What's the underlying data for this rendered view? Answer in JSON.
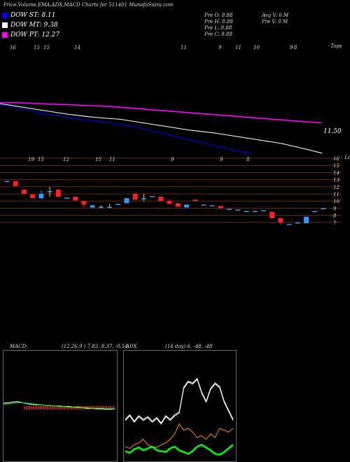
{
  "header": {
    "title": "Price,Volume,EMA,ADX,MACD Charts for 511401 MunafaSutra.com",
    "ohlc": {
      "open": "Pre  O: 8.88",
      "high": "Pre  H: 8.88",
      "low": "Pre  L: 8.88",
      "close": "Pre  C: 8.88",
      "avg_vol": "Avg V: 0  M",
      "pre_vol": "Pre  V: 0  M"
    }
  },
  "legend": [
    {
      "label": "DOW ST: 8.11",
      "color": "#0000ff"
    },
    {
      "label": "DOW MT: 9.38",
      "color": "#ffffff"
    },
    {
      "label": "DOW PT: 12.27",
      "color": "#ff00ff"
    }
  ],
  "ema_panel": {
    "top_label": "◦Tops",
    "last_price": "11.50",
    "date_labels": [
      "16",
      "15",
      "15",
      "14",
      "11",
      "9",
      "11",
      "10",
      "9",
      "8"
    ]
  },
  "price_panel": {
    "bottom_label": "◦ Lows",
    "date_labels": [
      "19",
      "15",
      "12",
      "15",
      "11",
      "9",
      "9",
      "8"
    ]
  },
  "macd": {
    "title": "MACD:",
    "params": "(12,26,9 ) 7.83, 8.37, -0.54"
  },
  "adx": {
    "title": "ADX",
    "params": "(14  day) 6, -48, -48"
  },
  "chart_data": [
    {
      "type": "line",
      "title": "EMA panel",
      "series": [
        {
          "name": "",
          "color": "#ff00ff",
          "values": [
            14.2,
            14.2,
            14.15,
            14.1,
            14.05,
            14.0,
            13.95,
            13.9,
            13.85,
            13.75,
            13.65,
            13.55,
            13.45,
            13.35,
            13.25,
            13.15,
            13.05,
            12.95,
            12.85,
            12.75,
            12.65,
            12.55,
            12.45,
            12.35,
            12.27
          ]
        },
        {
          "name": "",
          "color": "#ffffff",
          "values": [
            14.1,
            13.9,
            13.7,
            13.5,
            13.3,
            13.1,
            12.95,
            12.8,
            12.7,
            12.6,
            12.4,
            12.2,
            12.0,
            11.8,
            11.6,
            11.45,
            11.3,
            11.1,
            10.9,
            10.7,
            10.5,
            10.3,
            10.0,
            9.7,
            9.38
          ]
        },
        {
          "name": "",
          "color": "#0000ff",
          "values": [
            14.0,
            13.8,
            13.5,
            13.2,
            13.0,
            12.8,
            12.6,
            12.45,
            12.3,
            12.1,
            11.9,
            11.6,
            11.3,
            11.0,
            10.7,
            10.4,
            10.1,
            9.8,
            9.5,
            9.2,
            8.9,
            8.6,
            8.3,
            8.2,
            8.11
          ]
        }
      ]
    },
    {
      "type": "candlestick",
      "title": "Price panel",
      "y_ticks": [
        16,
        15,
        14,
        13,
        12,
        11,
        10,
        9,
        8,
        7
      ],
      "ylim": [
        6,
        16.5
      ],
      "candles": [
        {
          "o": 12.8,
          "c": 12.8,
          "h": 12.8,
          "l": 12.8
        },
        {
          "o": 12.8,
          "c": 12.1,
          "h": 12.8,
          "l": 12.1
        },
        {
          "o": 11.6,
          "c": 11.0,
          "h": 11.6,
          "l": 11.0
        },
        {
          "o": 10.9,
          "c": 10.4,
          "h": 11.0,
          "l": 10.4
        },
        {
          "o": 10.4,
          "c": 11.0,
          "h": 11.5,
          "l": 10.3
        },
        {
          "o": 11.4,
          "c": 11.4,
          "h": 12.0,
          "l": 10.6
        },
        {
          "o": 11.6,
          "c": 10.6,
          "h": 11.6,
          "l": 10.6
        },
        {
          "o": 10.5,
          "c": 10.5,
          "h": 10.5,
          "l": 10.5
        },
        {
          "o": 10.6,
          "c": 10.1,
          "h": 10.6,
          "l": 10.0
        },
        {
          "o": 10.0,
          "c": 9.5,
          "h": 10.0,
          "l": 9.1
        },
        {
          "o": 9.1,
          "c": 9.4,
          "h": 9.4,
          "l": 9.0
        },
        {
          "o": 9.2,
          "c": 9.2,
          "h": 9.4,
          "l": 9.0
        },
        {
          "o": 9.2,
          "c": 9.2,
          "h": 9.6,
          "l": 9.0
        },
        {
          "o": 9.6,
          "c": 9.6,
          "h": 9.6,
          "l": 9.6
        },
        {
          "o": 9.7,
          "c": 10.4,
          "h": 10.4,
          "l": 9.7
        },
        {
          "o": 11.0,
          "c": 10.2,
          "h": 11.1,
          "l": 10.2
        },
        {
          "o": 10.4,
          "c": 10.4,
          "h": 11.0,
          "l": 10.0
        },
        {
          "o": 10.7,
          "c": 10.7,
          "h": 10.7,
          "l": 10.7
        },
        {
          "o": 10.6,
          "c": 10.0,
          "h": 10.6,
          "l": 10.0
        },
        {
          "o": 10.0,
          "c": 9.6,
          "h": 10.2,
          "l": 9.6
        },
        {
          "o": 9.7,
          "c": 9.2,
          "h": 9.7,
          "l": 9.2
        },
        {
          "o": 9.1,
          "c": 9.5,
          "h": 9.5,
          "l": 9.1
        },
        {
          "o": 10.2,
          "c": 10.0,
          "h": 10.2,
          "l": 10.0
        },
        {
          "o": 9.5,
          "c": 9.5,
          "h": 9.5,
          "l": 9.5
        },
        {
          "o": 9.4,
          "c": 9.4,
          "h": 9.4,
          "l": 9.4
        },
        {
          "o": 9.3,
          "c": 9.0,
          "h": 9.3,
          "l": 9.0
        },
        {
          "o": 8.9,
          "c": 8.9,
          "h": 8.9,
          "l": 8.9
        },
        {
          "o": 8.8,
          "c": 8.8,
          "h": 8.8,
          "l": 8.8
        },
        {
          "o": 8.6,
          "c": 8.6,
          "h": 8.6,
          "l": 8.6
        },
        {
          "o": 8.6,
          "c": 8.6,
          "h": 8.6,
          "l": 8.6
        },
        {
          "o": 8.7,
          "c": 8.7,
          "h": 8.7,
          "l": 8.7
        },
        {
          "o": 8.5,
          "c": 7.6,
          "h": 8.5,
          "l": 7.6
        },
        {
          "o": 7.6,
          "c": 7.0,
          "h": 7.6,
          "l": 6.7
        },
        {
          "o": 6.8,
          "c": 6.8,
          "h": 6.8,
          "l": 6.8
        },
        {
          "o": 7.0,
          "c": 7.0,
          "h": 7.0,
          "l": 7.0
        },
        {
          "o": 6.9,
          "c": 7.8,
          "h": 7.8,
          "l": 6.9
        },
        {
          "o": 8.6,
          "c": 8.6,
          "h": 8.6,
          "l": 8.6
        },
        {
          "o": 9.0,
          "c": 9.0,
          "h": 9.0,
          "l": 9.0
        }
      ]
    },
    {
      "type": "line",
      "title": "MACD panel",
      "series": [
        {
          "name": "",
          "color": "#ffffff",
          "values": [
            0.5,
            0.6,
            0.7,
            0.8,
            0.6,
            0.4,
            0.3,
            0.2,
            0.2,
            0.1,
            0.1,
            0,
            0,
            -0.1,
            -0.1,
            -0.2,
            -0.2,
            -0.3,
            -0.4,
            -0.4,
            -0.5,
            -0.5,
            -0.6,
            -0.6,
            -0.5
          ]
        },
        {
          "name": "",
          "color": "#00ff00",
          "values": [
            0.3,
            0.4,
            0.5,
            0.6,
            0.6,
            0.5,
            0.4,
            0.3,
            0.2,
            0.1,
            0.1,
            0,
            -0.1,
            -0.1,
            -0.2,
            -0.2,
            -0.3,
            -0.3,
            -0.3,
            -0.4,
            -0.4,
            -0.4,
            -0.5,
            -0.5,
            -0.5
          ]
        }
      ]
    },
    {
      "type": "line",
      "title": "ADX panel",
      "series": [
        {
          "name": "",
          "color": "#ffffff",
          "values": [
            40,
            45,
            38,
            44,
            40,
            43,
            38,
            42,
            36,
            44,
            40,
            45,
            48,
            75,
            82,
            80,
            85,
            70,
            60,
            74,
            80,
            76,
            60,
            50,
            40
          ]
        },
        {
          "name": "",
          "color": "#ff8c00",
          "values": [
            10,
            8,
            12,
            14,
            18,
            12,
            10,
            9,
            12,
            14,
            18,
            24,
            35,
            28,
            30,
            26,
            20,
            22,
            18,
            24,
            20,
            30,
            28,
            26,
            30
          ]
        },
        {
          "name": "",
          "color": "#00ff00",
          "values": [
            5,
            3,
            7,
            9,
            6,
            8,
            10,
            6,
            5,
            4,
            8,
            10,
            6,
            4,
            2,
            5,
            10,
            12,
            9,
            6,
            2,
            1,
            4,
            8,
            12
          ]
        }
      ]
    }
  ]
}
